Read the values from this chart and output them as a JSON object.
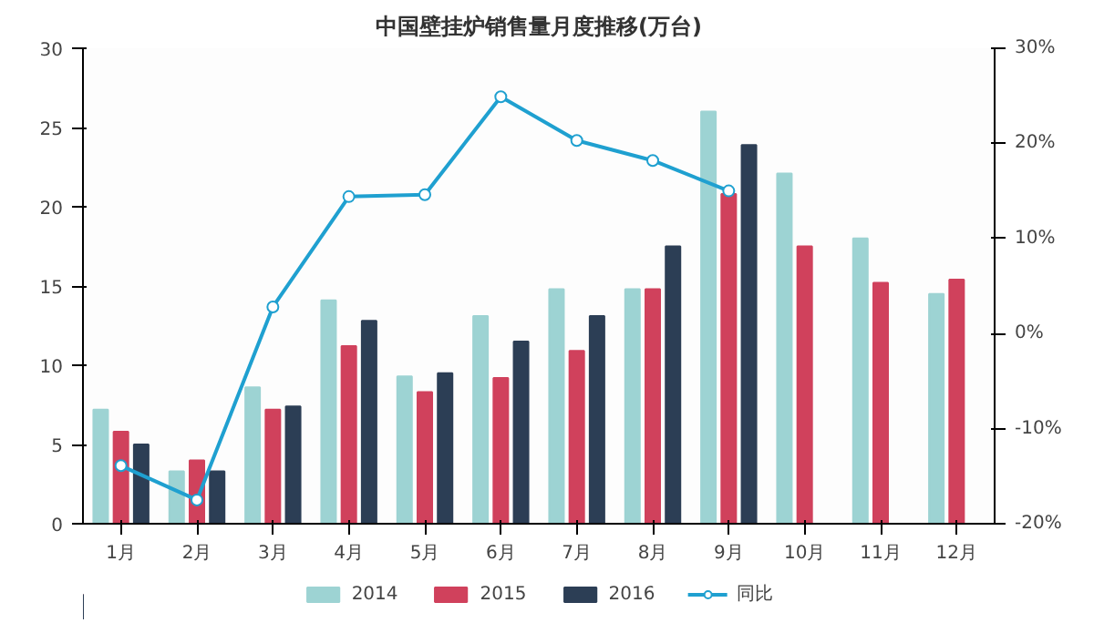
{
  "chart_data": {
    "type": "bar",
    "title": "中国壁挂炉销售量月度推移(万台)",
    "categories": [
      "1月",
      "2月",
      "3月",
      "4月",
      "5月",
      "6月",
      "7月",
      "8月",
      "9月",
      "10月",
      "11月",
      "12月"
    ],
    "series": [
      {
        "name": "2014",
        "color": "#9dd3d3",
        "values": [
          7.2,
          3.3,
          8.6,
          14.1,
          9.3,
          13.1,
          14.8,
          14.8,
          26.0,
          22.1,
          18.0,
          14.5
        ]
      },
      {
        "name": "2015",
        "color": "#d0415c",
        "values": [
          5.8,
          4.0,
          7.2,
          11.2,
          8.3,
          9.2,
          10.9,
          14.8,
          20.8,
          17.5,
          15.2,
          15.4
        ]
      },
      {
        "name": "2016",
        "color": "#2c3e55",
        "values": [
          5.0,
          3.3,
          7.4,
          12.8,
          9.5,
          11.5,
          13.1,
          17.5,
          23.9,
          null,
          null,
          null
        ]
      },
      {
        "name": "同比",
        "type": "line",
        "axis": "y2",
        "color": "#1fa0d0",
        "marker": "circle",
        "values": [
          -13.9,
          -17.5,
          2.8,
          14.4,
          14.6,
          24.9,
          20.3,
          18.2,
          15.0,
          null,
          null,
          null
        ]
      }
    ],
    "ylim": [
      0,
      30
    ],
    "yticks": [
      0,
      5,
      10,
      15,
      20,
      25,
      30
    ],
    "y2lim": [
      -20,
      30
    ],
    "y2ticks": [
      {
        "value": -20,
        "label": "-20%"
      },
      {
        "value": -10,
        "label": "-10%"
      },
      {
        "value": 0,
        "label": "0%"
      },
      {
        "value": 10,
        "label": "10%"
      },
      {
        "value": 20,
        "label": "20%"
      },
      {
        "value": 30,
        "label": "30%"
      }
    ],
    "legend": "bottom",
    "grid": false
  }
}
